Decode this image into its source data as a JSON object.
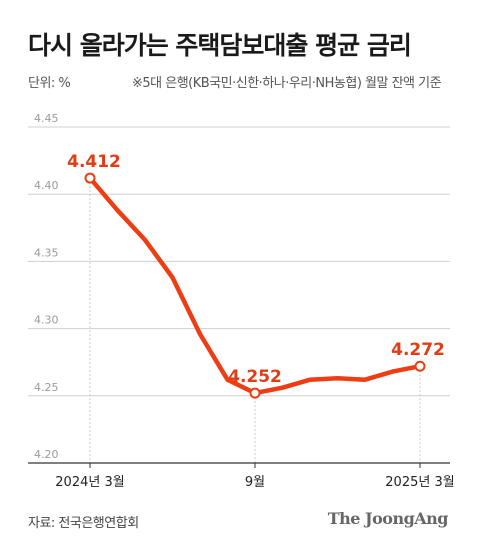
{
  "title": "다시 올라가는 주택담보대출 평균 금리",
  "unit_label": "단위: %",
  "note": "※5대 은행(KB국민·신한·하나·우리·NH농협) 월말 잔액 기준",
  "source": "자료: 전국은행연합회",
  "brand": "The JoongAng",
  "colors": {
    "line": "#ee3d12",
    "label": "#e03c16",
    "axis": "#333333",
    "grid": "#cfcfcf",
    "guide": "#c8c8c8"
  },
  "chart_data": {
    "type": "line",
    "x": [
      "2024-03",
      "2024-04",
      "2024-05",
      "2024-06",
      "2024-07",
      "2024-08",
      "2024-09",
      "2024-10",
      "2024-11",
      "2024-12",
      "2025-01",
      "2025-02",
      "2025-03"
    ],
    "values": [
      4.412,
      4.388,
      4.366,
      4.338,
      4.296,
      4.262,
      4.252,
      4.256,
      4.262,
      4.263,
      4.262,
      4.268,
      4.272
    ],
    "ylim": [
      4.2,
      4.45
    ],
    "yticks": [
      "4.20",
      "4.25",
      "4.30",
      "4.35",
      "4.40",
      "4.45"
    ],
    "xtick_labels": [
      {
        "index": 0,
        "label": "2024년 3월"
      },
      {
        "index": 6,
        "label": "9월"
      },
      {
        "index": 12,
        "label": "2025년 3월"
      }
    ],
    "data_labels": [
      {
        "index": 0,
        "label": "4.412"
      },
      {
        "index": 6,
        "label": "4.252"
      },
      {
        "index": 12,
        "label": "4.272"
      }
    ],
    "grid": true
  }
}
